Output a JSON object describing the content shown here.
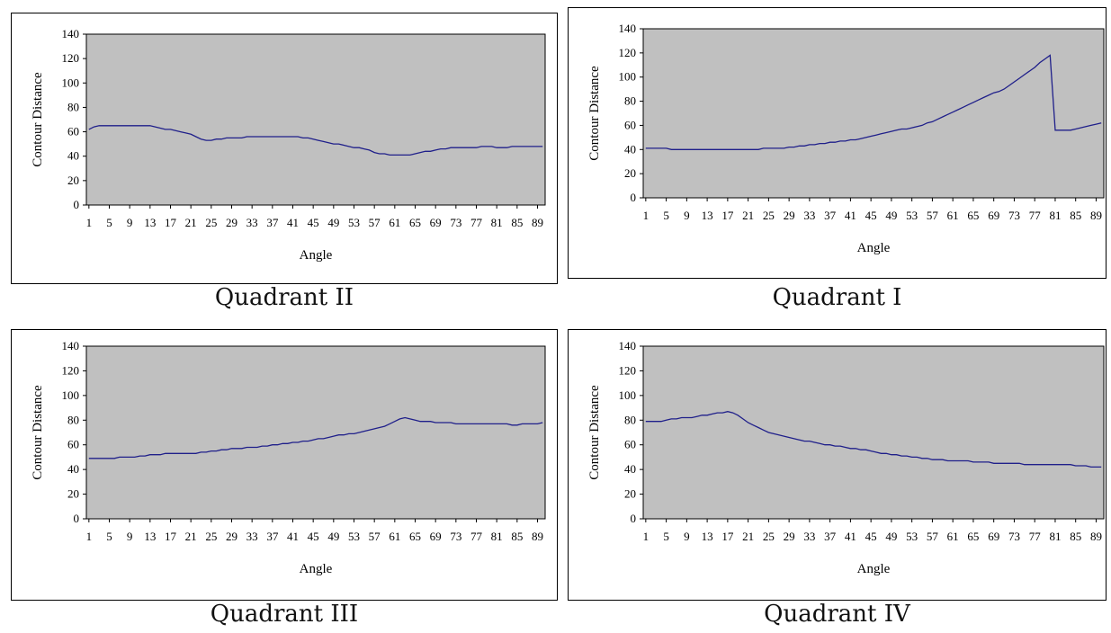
{
  "colors": {
    "plot_background": "#c0c0c0",
    "line": "#1f1f8a",
    "frame": "#000000"
  },
  "chart_data": [
    {
      "type": "line",
      "caption": "Quadrant II",
      "xlabel": "Angle",
      "ylabel": "Contour Distance",
      "ylim": [
        0,
        140
      ],
      "yticks": [
        "0",
        "20",
        "40",
        "60",
        "80",
        "100",
        "120",
        "140"
      ],
      "xticks": [
        "1",
        "5",
        "9",
        "13",
        "17",
        "21",
        "25",
        "29",
        "33",
        "37",
        "41",
        "45",
        "49",
        "53",
        "57",
        "61",
        "65",
        "69",
        "73",
        "77",
        "81",
        "85",
        "89"
      ],
      "grid": false,
      "series": [
        {
          "values": [
            62,
            64,
            65,
            65,
            65,
            65,
            65,
            65,
            65,
            65,
            65,
            65,
            65,
            64,
            63,
            62,
            62,
            61,
            60,
            59,
            58,
            56,
            54,
            53,
            53,
            54,
            54,
            55,
            55,
            55,
            55,
            56,
            56,
            56,
            56,
            56,
            56,
            56,
            56,
            56,
            56,
            56,
            55,
            55,
            54,
            53,
            52,
            51,
            50,
            50,
            49,
            48,
            47,
            47,
            46,
            45,
            43,
            42,
            42,
            41,
            41,
            41,
            41,
            41,
            42,
            43,
            44,
            44,
            45,
            46,
            46,
            47,
            47,
            47,
            47,
            47,
            47,
            48,
            48,
            48,
            47,
            47,
            47,
            48,
            48,
            48,
            48,
            48,
            48,
            48
          ]
        }
      ]
    },
    {
      "type": "line",
      "caption": "Quadrant I",
      "xlabel": "Angle",
      "ylabel": "Contour Distance",
      "ylim": [
        0,
        140
      ],
      "yticks": [
        "0",
        "20",
        "40",
        "60",
        "80",
        "100",
        "120",
        "140"
      ],
      "xticks": [
        "1",
        "5",
        "9",
        "13",
        "17",
        "21",
        "25",
        "29",
        "33",
        "37",
        "41",
        "45",
        "49",
        "53",
        "57",
        "61",
        "65",
        "69",
        "73",
        "77",
        "81",
        "85",
        "89"
      ],
      "grid": false,
      "series": [
        {
          "values": [
            41,
            41,
            41,
            41,
            41,
            40,
            40,
            40,
            40,
            40,
            40,
            40,
            40,
            40,
            40,
            40,
            40,
            40,
            40,
            40,
            40,
            40,
            40,
            41,
            41,
            41,
            41,
            41,
            42,
            42,
            43,
            43,
            44,
            44,
            45,
            45,
            46,
            46,
            47,
            47,
            48,
            48,
            49,
            50,
            51,
            52,
            53,
            54,
            55,
            56,
            57,
            57,
            58,
            59,
            60,
            62,
            63,
            65,
            67,
            69,
            71,
            73,
            75,
            77,
            79,
            81,
            83,
            85,
            87,
            88,
            90,
            93,
            96,
            99,
            102,
            105,
            108,
            112,
            115,
            118,
            56,
            56,
            56,
            56,
            57,
            58,
            59,
            60,
            61,
            62
          ]
        }
      ]
    },
    {
      "type": "line",
      "caption": "Quadrant III",
      "xlabel": "Angle",
      "ylabel": "Contour Distance",
      "ylim": [
        0,
        140
      ],
      "yticks": [
        "0",
        "20",
        "40",
        "60",
        "80",
        "100",
        "120",
        "140"
      ],
      "xticks": [
        "1",
        "5",
        "9",
        "13",
        "17",
        "21",
        "25",
        "29",
        "33",
        "37",
        "41",
        "45",
        "49",
        "53",
        "57",
        "61",
        "65",
        "69",
        "73",
        "77",
        "81",
        "85",
        "89"
      ],
      "grid": false,
      "series": [
        {
          "values": [
            49,
            49,
            49,
            49,
            49,
            49,
            50,
            50,
            50,
            50,
            51,
            51,
            52,
            52,
            52,
            53,
            53,
            53,
            53,
            53,
            53,
            53,
            54,
            54,
            55,
            55,
            56,
            56,
            57,
            57,
            57,
            58,
            58,
            58,
            59,
            59,
            60,
            60,
            61,
            61,
            62,
            62,
            63,
            63,
            64,
            65,
            65,
            66,
            67,
            68,
            68,
            69,
            69,
            70,
            71,
            72,
            73,
            74,
            75,
            77,
            79,
            81,
            82,
            81,
            80,
            79,
            79,
            79,
            78,
            78,
            78,
            78,
            77,
            77,
            77,
            77,
            77,
            77,
            77,
            77,
            77,
            77,
            77,
            76,
            76,
            77,
            77,
            77,
            77,
            78
          ]
        }
      ]
    },
    {
      "type": "line",
      "caption": "Quadrant IV",
      "xlabel": "Angle",
      "ylabel": "Contour Distance",
      "ylim": [
        0,
        140
      ],
      "yticks": [
        "0",
        "20",
        "40",
        "60",
        "80",
        "100",
        "120",
        "140"
      ],
      "xticks": [
        "1",
        "5",
        "9",
        "13",
        "17",
        "21",
        "25",
        "29",
        "33",
        "37",
        "41",
        "45",
        "49",
        "53",
        "57",
        "61",
        "65",
        "69",
        "73",
        "77",
        "81",
        "85",
        "89"
      ],
      "grid": false,
      "series": [
        {
          "values": [
            79,
            79,
            79,
            79,
            80,
            81,
            81,
            82,
            82,
            82,
            83,
            84,
            84,
            85,
            86,
            86,
            87,
            86,
            84,
            81,
            78,
            76,
            74,
            72,
            70,
            69,
            68,
            67,
            66,
            65,
            64,
            63,
            63,
            62,
            61,
            60,
            60,
            59,
            59,
            58,
            57,
            57,
            56,
            56,
            55,
            54,
            53,
            53,
            52,
            52,
            51,
            51,
            50,
            50,
            49,
            49,
            48,
            48,
            48,
            47,
            47,
            47,
            47,
            47,
            46,
            46,
            46,
            46,
            45,
            45,
            45,
            45,
            45,
            45,
            44,
            44,
            44,
            44,
            44,
            44,
            44,
            44,
            44,
            44,
            43,
            43,
            43,
            42,
            42,
            42
          ]
        }
      ]
    }
  ]
}
